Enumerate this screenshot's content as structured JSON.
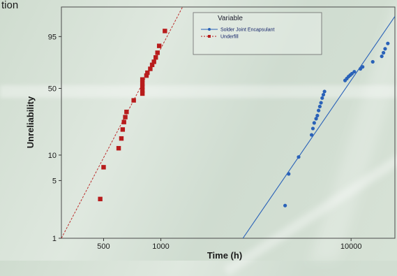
{
  "corner_text": "tion",
  "chart_data": {
    "type": "scatter",
    "x_scale": "log",
    "y_scale": "weibull",
    "xlabel": "Time (h)",
    "ylabel": "Unreliability",
    "xlim": [
      300,
      17000
    ],
    "ylim": [
      1,
      99.9
    ],
    "x_ticks": [
      500,
      1000,
      10000
    ],
    "y_ticks": [
      1,
      5,
      10,
      50,
      95
    ],
    "grid": false,
    "legend": {
      "title": "Variable",
      "position": "top-right"
    },
    "series": [
      {
        "name": "Solder Joint Encapsulant",
        "color": "#2a62b8",
        "marker": "circle",
        "fit_line": [
          [
            2700,
            1
          ],
          [
            17000,
            99.5
          ]
        ],
        "points": [
          [
            4500,
            2.5
          ],
          [
            4700,
            6
          ],
          [
            5300,
            9.5
          ],
          [
            6200,
            17
          ],
          [
            6300,
            20
          ],
          [
            6400,
            23
          ],
          [
            6550,
            25.5
          ],
          [
            6650,
            27.5
          ],
          [
            6750,
            31
          ],
          [
            6850,
            34
          ],
          [
            6950,
            37
          ],
          [
            7050,
            41
          ],
          [
            7150,
            44
          ],
          [
            7250,
            47
          ],
          [
            9300,
            58
          ],
          [
            9500,
            60
          ],
          [
            9700,
            62
          ],
          [
            9900,
            63.5
          ],
          [
            10100,
            65
          ],
          [
            10400,
            67
          ],
          [
            11200,
            70
          ],
          [
            11500,
            72
          ],
          [
            13000,
            77
          ],
          [
            14500,
            82
          ],
          [
            14800,
            85
          ],
          [
            15100,
            88
          ],
          [
            15600,
            91.5
          ]
        ]
      },
      {
        "name": "Underfill",
        "color": "#b81c1c",
        "marker": "square",
        "fit_line": [
          [
            300,
            1
          ],
          [
            1300,
            99.9
          ]
        ],
        "points": [
          [
            480,
            3
          ],
          [
            500,
            7.2
          ],
          [
            600,
            12
          ],
          [
            620,
            15.5
          ],
          [
            630,
            19.5
          ],
          [
            640,
            23.5
          ],
          [
            650,
            26.5
          ],
          [
            660,
            30
          ],
          [
            720,
            39
          ],
          [
            800,
            45
          ],
          [
            800,
            48
          ],
          [
            800,
            51.5
          ],
          [
            800,
            55
          ],
          [
            800,
            59
          ],
          [
            840,
            63
          ],
          [
            850,
            66
          ],
          [
            880,
            70
          ],
          [
            900,
            74
          ],
          [
            920,
            77
          ],
          [
            940,
            81
          ],
          [
            960,
            85
          ],
          [
            980,
            90
          ],
          [
            1050,
            97
          ]
        ]
      }
    ]
  }
}
